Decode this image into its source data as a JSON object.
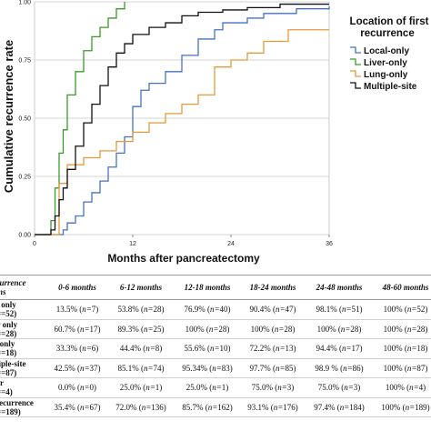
{
  "chart_data": {
    "type": "line",
    "step": true,
    "title": "",
    "ylabel": "Cumulative recurrence rate",
    "xlabel": "Months after pancreatectomy",
    "xlim": [
      0,
      36
    ],
    "ylim": [
      0,
      1
    ],
    "xticks": [
      "0",
      "12",
      "24",
      "36"
    ],
    "yticks": [
      "0.00",
      "0.25",
      "0.50",
      "0.75",
      "1.00"
    ],
    "grid": true,
    "legend": {
      "title_lines": [
        "Location of first",
        "recurrence"
      ],
      "placement": "right"
    },
    "series": [
      {
        "name": "Local-only",
        "color": "#4472c4",
        "points": [
          [
            0,
            0
          ],
          [
            3.5,
            0.02
          ],
          [
            4,
            0.05
          ],
          [
            5,
            0.08
          ],
          [
            6,
            0.14
          ],
          [
            7,
            0.18
          ],
          [
            8,
            0.23
          ],
          [
            9,
            0.29
          ],
          [
            10,
            0.35
          ],
          [
            11,
            0.42
          ],
          [
            12,
            0.55
          ],
          [
            13,
            0.62
          ],
          [
            14,
            0.65
          ],
          [
            16,
            0.7
          ],
          [
            18,
            0.77
          ],
          [
            20,
            0.84
          ],
          [
            22,
            0.88
          ],
          [
            23,
            0.91
          ],
          [
            26,
            0.93
          ],
          [
            28,
            0.95
          ],
          [
            32,
            0.97
          ],
          [
            36,
            0.98
          ]
        ]
      },
      {
        "name": "Liver-only",
        "color": "#3a9a2a",
        "points": [
          [
            0,
            0
          ],
          [
            2,
            0.06
          ],
          [
            2.5,
            0.2
          ],
          [
            3,
            0.35
          ],
          [
            3.5,
            0.45
          ],
          [
            4,
            0.6
          ],
          [
            5,
            0.7
          ],
          [
            6,
            0.79
          ],
          [
            7,
            0.85
          ],
          [
            8,
            0.89
          ],
          [
            9,
            0.93
          ],
          [
            10,
            0.97
          ],
          [
            11,
            1.0
          ]
        ]
      },
      {
        "name": "Lung-only",
        "color": "#e69a3a",
        "points": [
          [
            0,
            0
          ],
          [
            3,
            0.22
          ],
          [
            4,
            0.3
          ],
          [
            6,
            0.33
          ],
          [
            8,
            0.36
          ],
          [
            10,
            0.4
          ],
          [
            12,
            0.44
          ],
          [
            14,
            0.48
          ],
          [
            16,
            0.52
          ],
          [
            18,
            0.56
          ],
          [
            20,
            0.6
          ],
          [
            22,
            0.72
          ],
          [
            24,
            0.75
          ],
          [
            26,
            0.78
          ],
          [
            28,
            0.83
          ],
          [
            31,
            0.88
          ],
          [
            36,
            0.88
          ]
        ]
      },
      {
        "name": "Multiple-site",
        "color": "#111111",
        "points": [
          [
            0,
            0
          ],
          [
            2,
            0.02
          ],
          [
            2.5,
            0.08
          ],
          [
            3,
            0.15
          ],
          [
            3.5,
            0.2
          ],
          [
            4,
            0.28
          ],
          [
            5,
            0.38
          ],
          [
            6,
            0.48
          ],
          [
            7,
            0.56
          ],
          [
            8,
            0.64
          ],
          [
            9,
            0.72
          ],
          [
            10,
            0.78
          ],
          [
            11,
            0.82
          ],
          [
            12,
            0.86
          ],
          [
            14,
            0.89
          ],
          [
            16,
            0.91
          ],
          [
            18,
            0.94
          ],
          [
            20,
            0.955
          ],
          [
            23,
            0.965
          ],
          [
            26,
            0.975
          ],
          [
            30,
            0.99
          ],
          [
            36,
            0.99
          ]
        ]
      }
    ]
  },
  "table": {
    "corner_lines": [
      "recurrence",
      "terns"
    ],
    "columns": [
      "0-6 months",
      "6-12 months",
      "12-18 months",
      "18-24 months",
      "24-48 months",
      "48-60 months"
    ],
    "rows": [
      {
        "label_lines": [
          "cal only",
          "=52)"
        ],
        "cells": [
          [
            "13.5% (",
            "7)"
          ],
          [
            "53.8% (",
            "28)"
          ],
          [
            "76.9% (",
            "40)"
          ],
          [
            "90.4% (",
            "47)"
          ],
          [
            "98.1% (",
            "51)"
          ],
          [
            "100% (",
            "52)"
          ]
        ]
      },
      {
        "label_lines": [
          "ver only",
          "=28)"
        ],
        "cells": [
          [
            "60.7% (",
            "17)"
          ],
          [
            "89.3% (",
            "25)"
          ],
          [
            "100% (",
            "28)"
          ],
          [
            "100% (",
            "28)"
          ],
          [
            "100% (",
            "28)"
          ],
          [
            "100% (",
            "28)"
          ]
        ]
      },
      {
        "label_lines": [
          "ng only",
          "=18)"
        ],
        "cells": [
          [
            "33.3% (",
            "6)"
          ],
          [
            "44.4% (",
            "8)"
          ],
          [
            "55.6% (",
            "10)"
          ],
          [
            "72.2% (",
            "13)"
          ],
          [
            "94.4% (",
            "17)"
          ],
          [
            "100% (",
            "18)"
          ]
        ]
      },
      {
        "label_lines": [
          "ultiple-site",
          "=87)"
        ],
        "cells": [
          [
            "42.5% (",
            "37)"
          ],
          [
            "85.1% (",
            "74)"
          ],
          [
            "95.34% (",
            "83)"
          ],
          [
            "97.7% (",
            "85)"
          ],
          [
            "98.9 % (",
            "86)"
          ],
          [
            "100% (",
            "87)"
          ]
        ]
      },
      {
        "label_lines": [
          "ther",
          "=4)"
        ],
        "cells": [
          [
            "0.0% (",
            "0)"
          ],
          [
            "25.0% (",
            "1)"
          ],
          [
            "25.0% (",
            "1)"
          ],
          [
            "75.0% (",
            "3)"
          ],
          [
            "75.0% (",
            "3)"
          ],
          [
            "100% (",
            "4)"
          ]
        ]
      },
      {
        "label_lines": [
          "ll recurrence",
          "=189)"
        ],
        "cells": [
          [
            "35.4% (",
            "67)"
          ],
          [
            "72.0% (",
            "136)"
          ],
          [
            "85.7% (",
            "162)"
          ],
          [
            "93.1% (",
            "176)"
          ],
          [
            "97.4% (",
            "184)"
          ],
          [
            "100% (",
            "189)"
          ]
        ]
      }
    ],
    "n_symbol": "n="
  }
}
